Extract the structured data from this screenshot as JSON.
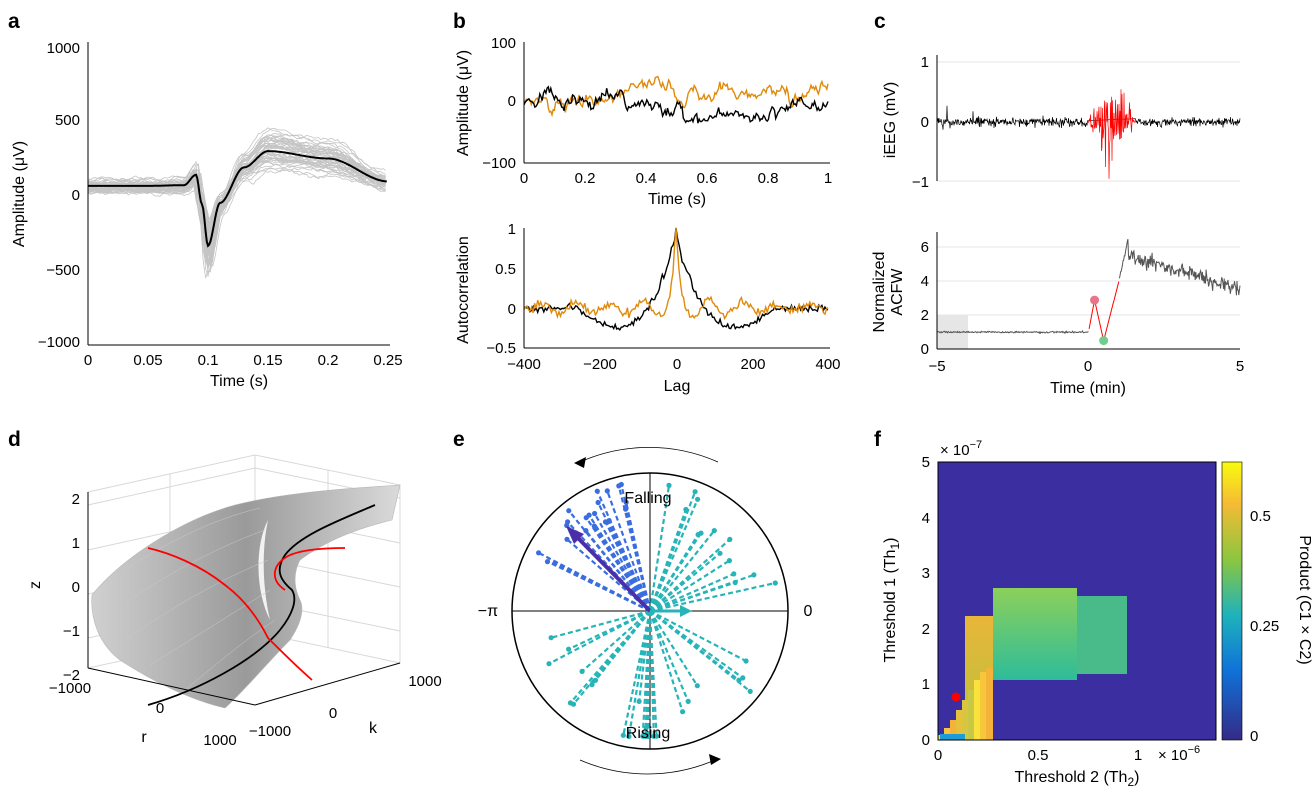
{
  "panels": {
    "a": {
      "letter": "a",
      "xlabel": "Time (s)",
      "ylabel": "Amplitude (μV)",
      "xticks": [
        "0",
        "0.05",
        "0.1",
        "0.15",
        "0.2",
        "0.25"
      ],
      "yticks": [
        "1000",
        "500",
        "0",
        "−500",
        "−1000"
      ]
    },
    "b": {
      "letter": "b",
      "top": {
        "xlabel": "Time (s)",
        "ylabel": "Amplitude (μV)",
        "xticks": [
          "0",
          "0.2",
          "0.4",
          "0.6",
          "0.8",
          "1"
        ],
        "yticks": [
          "100",
          "0",
          "−100"
        ]
      },
      "bottom": {
        "xlabel": "Lag",
        "ylabel": "Autocorrelation",
        "xticks": [
          "−400",
          "−200",
          "0",
          "200",
          "400"
        ],
        "yticks": [
          "1",
          "0.5",
          "0",
          "−0.5"
        ]
      }
    },
    "c": {
      "letter": "c",
      "top": {
        "ylabel": "iEEG (mV)",
        "yticks": [
          "1",
          "0",
          "−1"
        ]
      },
      "bottom": {
        "ylabel_line1": "Normalized",
        "ylabel_line2": "ACFW",
        "xlabel": "Time (min)",
        "xticks": [
          "−5",
          "0",
          "5"
        ],
        "yticks": [
          "6",
          "4",
          "2",
          "0"
        ]
      }
    },
    "d": {
      "letter": "d",
      "zlabel": "z",
      "rlabel": "r",
      "klabel": "k",
      "zticks": [
        "2",
        "1",
        "0",
        "−1",
        "−2"
      ],
      "rticks": [
        "−1000",
        "0",
        "1000"
      ],
      "kticks": [
        "−1000",
        "0",
        "1000"
      ]
    },
    "e": {
      "letter": "e",
      "label_falling": "Falling",
      "label_rising": "Rising",
      "label_left": "−π",
      "label_right": "0"
    },
    "f": {
      "letter": "f",
      "xlabel": "Threshold 2 (Th",
      "xlabel_sub": "2",
      "xlabel_close": ")",
      "ylabel": "Threshold 1 (Th",
      "ylabel_sub": "1",
      "ylabel_close": ")",
      "xticks": [
        "0",
        "0.5",
        "1"
      ],
      "yticks": [
        "5",
        "4",
        "3",
        "2",
        "1",
        "0"
      ],
      "xexp": "× 10",
      "xexp_pow": "−6",
      "yexp": "× 10",
      "yexp_pow": "−7",
      "cbar_label": "Product (C1 × C2)",
      "cbar_ticks": [
        "0.5",
        "0.25",
        "0"
      ]
    }
  },
  "colors": {
    "orange": "#e08a0b",
    "red": "#ff0000",
    "teal": "#27b4b8",
    "blue": "#3a6ee0",
    "purple": "#4a2fa8",
    "gray": "#bdbdbd",
    "heat_bg": "#3a2ea0"
  },
  "chart_data": [
    {
      "panel": "a",
      "type": "line",
      "xlim": [
        0,
        0.25
      ],
      "ylim": [
        -1000,
        1000
      ],
      "series": [
        {
          "x": [
            0,
            0.05,
            0.08,
            0.09,
            0.095,
            0.1,
            0.11,
            0.13,
            0.15,
            0.2,
            0.25
          ],
          "y": [
            75,
            75,
            80,
            150,
            -50,
            -330,
            -40,
            200,
            310,
            260,
            105
          ]
        }
      ]
    },
    {
      "panel": "b-top",
      "type": "line",
      "xlim": [
        0,
        1
      ],
      "ylim": [
        -100,
        100
      ]
    },
    {
      "panel": "b-bottom",
      "type": "line",
      "xlim": [
        -400,
        400
      ],
      "ylim": [
        -0.5,
        1
      ]
    },
    {
      "panel": "c-top",
      "type": "line",
      "ylim": [
        -1,
        1
      ]
    },
    {
      "panel": "c-bottom",
      "type": "line",
      "xlim": [
        -5,
        5
      ],
      "ylim": [
        0,
        7
      ],
      "markers": [
        {
          "x": 0.2,
          "y": 2.9
        },
        {
          "x": 0.5,
          "y": 0.5
        }
      ]
    },
    {
      "panel": "f",
      "type": "heatmap",
      "xlim": [
        0,
        1.4
      ],
      "ylim": [
        0,
        5
      ],
      "colorbar_range": [
        0,
        0.6
      ],
      "marker": {
        "x": 0.22,
        "y": 0.75
      }
    }
  ]
}
